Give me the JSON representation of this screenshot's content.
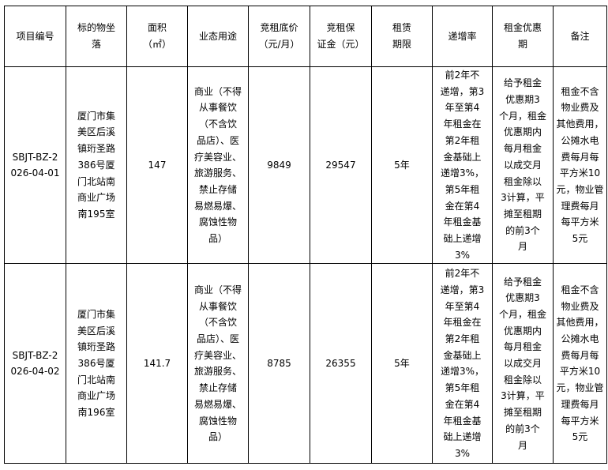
{
  "headers": [
    "项目编号",
    "标的物坐\n落",
    "面积\n（㎡）",
    "业态用途",
    "竞租底价\n（元/月）",
    "竞租保\n证金（元）",
    "租赁\n期限",
    "递增率",
    "租金优惠\n期",
    "备注"
  ],
  "rows": [
    [
      "SBJT-BZ-2\n026-04-01",
      "厦门市集\n美区后溪\n镇珩圣路\n386号厦\n门北站南\n商业广场\n南195室",
      "147",
      "商业（不得\n从事餐饮\n（不含饮\n品店）、医\n疗美容业、\n旅游服务、\n禁止存储\n易燃易爆、\n腐蚀性物\n品）",
      "9849",
      "29547",
      "5年",
      "前2年不\n递增，第3\n年至第4\n年租金在\n第2年租\n金基础上\n递增3%，\n第5年租\n金在第4\n年租金基\n础上递增\n3%",
      "给予租金\n优惠期3\n个月，租金\n优惠期内\n每月租金\n以成交月\n租金除以\n3计算，平\n摊至租期\n的前3个\n月",
      "租金不含\n物业费及\n其他费用，\n公摊水电\n费每月每\n平方米10\n元，物业管\n理费每月\n每平方米\n5元"
    ],
    [
      "SBJT-BZ-2\n026-04-02",
      "厦门市集\n美区后溪\n镇珩圣路\n386号厦\n门北站南\n商业广场\n南196室",
      "141.7",
      "商业（不得\n从事餐饮\n（不含饮\n品店）、医\n疗美容业、\n旅游服务、\n禁止存储\n易燃易爆、\n腐蚀性物\n品）",
      "8785",
      "26355",
      "5年",
      "前2年不\n递增，第3\n年至第4\n年租金在\n第2年租\n金基础上\n递增3%，\n第5年租\n金在第4\n年租金基\n础上递增\n3%",
      "给予租金\n优惠期3\n个月，租金\n优惠期内\n每月租金\n以成交月\n租金除以\n3计算，平\n摊至租期\n的前3个\n月",
      "租金不含\n物业费及\n其他费用，\n公摊水电\n费每月每\n平方米10\n元，物业管\n理费每月\n每平方米\n5元"
    ]
  ]
}
